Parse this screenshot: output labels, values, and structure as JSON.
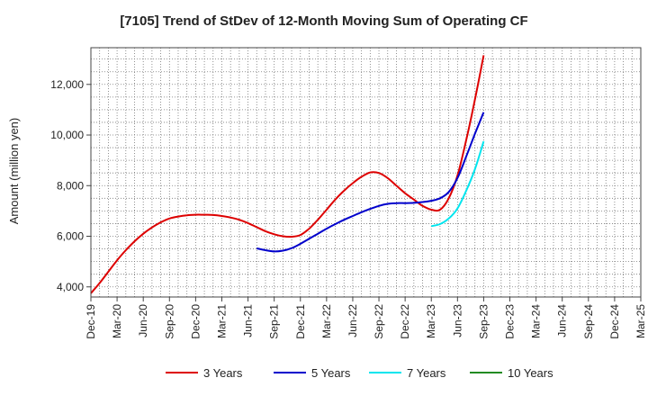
{
  "chart_data": {
    "type": "line",
    "title": "[7105]  Trend of StDev of 12-Month Moving Sum of Operating CF",
    "xlabel": "",
    "ylabel": "Amount (million yen)",
    "x_tick_labels": [
      "Dec-19",
      "Mar-20",
      "Jun-20",
      "Sep-20",
      "Dec-20",
      "Mar-21",
      "Jun-21",
      "Sep-21",
      "Dec-21",
      "Mar-22",
      "Jun-22",
      "Sep-22",
      "Dec-22",
      "Mar-23",
      "Jun-23",
      "Sep-23",
      "Dec-23",
      "Mar-24",
      "Jun-24",
      "Sep-24",
      "Dec-24",
      "Mar-25"
    ],
    "y_ticks": [
      4000,
      6000,
      8000,
      10000,
      12000
    ],
    "y_tick_labels": [
      "4,000",
      "6,000",
      "8,000",
      "10,000",
      "12,000"
    ],
    "ylim": [
      3600,
      13450
    ],
    "grid": true,
    "legend_position": "bottom",
    "series": [
      {
        "name": "3 Years",
        "color": "#dd0000",
        "values": [
          3750,
          4150,
          4600,
          5050,
          5450,
          5800,
          6100,
          6350,
          6550,
          6700,
          6780,
          6830,
          6850,
          6850,
          6840,
          6800,
          6740,
          6650,
          6520,
          6360,
          6200,
          6080,
          6000,
          5980,
          6050,
          6300,
          6650,
          7050,
          7450,
          7800,
          8100,
          8350,
          8520,
          8500,
          8300,
          8000,
          7700,
          7450,
          7200,
          7050,
          7050,
          7500,
          8400,
          9800,
          11400,
          13150
        ]
      },
      {
        "name": "5 Years",
        "color": "#0000cc",
        "values": [
          null,
          null,
          null,
          null,
          null,
          null,
          null,
          null,
          null,
          null,
          null,
          null,
          null,
          null,
          null,
          null,
          null,
          null,
          null,
          5520,
          5450,
          5400,
          5430,
          5530,
          5700,
          5900,
          6100,
          6300,
          6480,
          6650,
          6800,
          6950,
          7080,
          7200,
          7280,
          7310,
          7310,
          7320,
          7350,
          7400,
          7500,
          7750,
          8300,
          9150,
          10050,
          10900
        ]
      },
      {
        "name": "7 Years",
        "color": "#00e5ee",
        "values": [
          null,
          null,
          null,
          null,
          null,
          null,
          null,
          null,
          null,
          null,
          null,
          null,
          null,
          null,
          null,
          null,
          null,
          null,
          null,
          null,
          null,
          null,
          null,
          null,
          null,
          null,
          null,
          null,
          null,
          null,
          null,
          null,
          null,
          null,
          null,
          null,
          null,
          null,
          null,
          6400,
          6480,
          6700,
          7100,
          7800,
          8650,
          9750
        ]
      },
      {
        "name": "10 Years",
        "color": "#228b22",
        "values": []
      }
    ]
  }
}
